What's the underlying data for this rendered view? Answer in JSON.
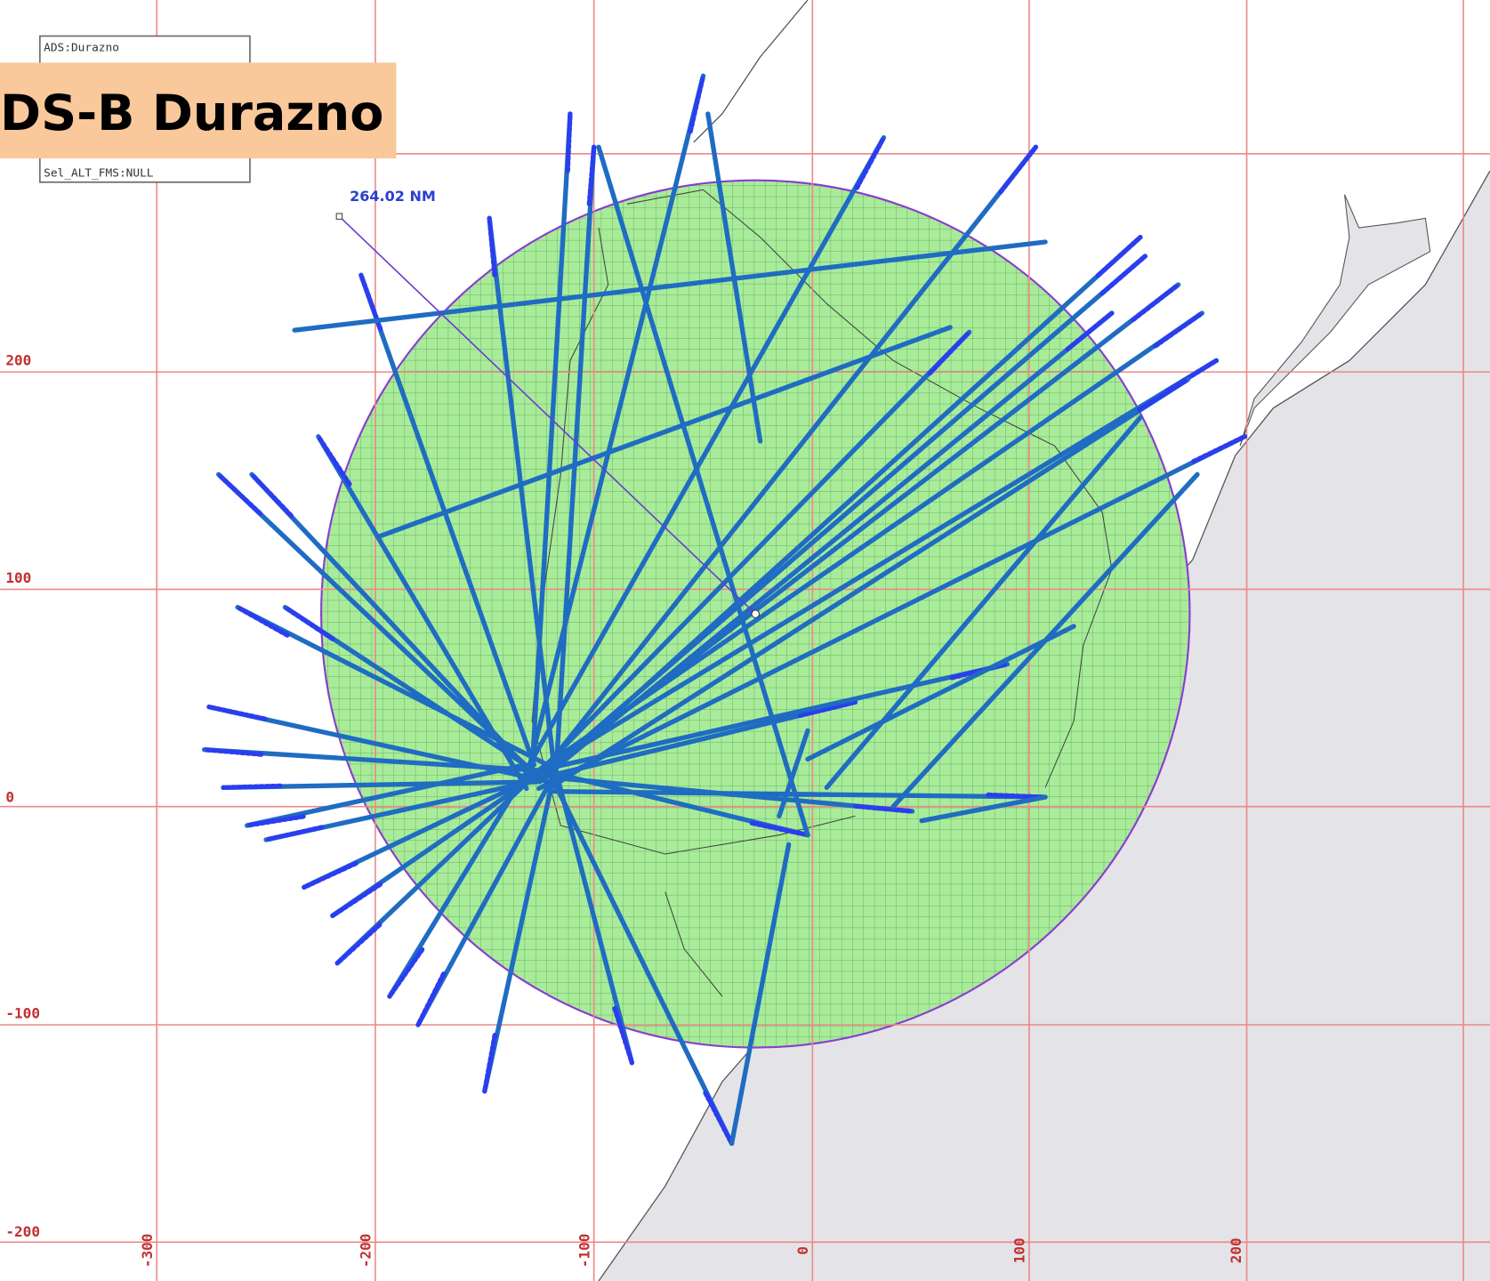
{
  "title": "DS-B Durazno",
  "info_box": {
    "lines": [
      "ADS:Durazno",
      "Sel_ALT_FMS:NULL"
    ]
  },
  "range_label": "264.02 NM",
  "y_labels": [
    "200",
    "100",
    "0",
    "-100",
    "-200"
  ],
  "x_labels": [
    "-300",
    "-200",
    "-100",
    "0",
    "100",
    "200"
  ]
}
